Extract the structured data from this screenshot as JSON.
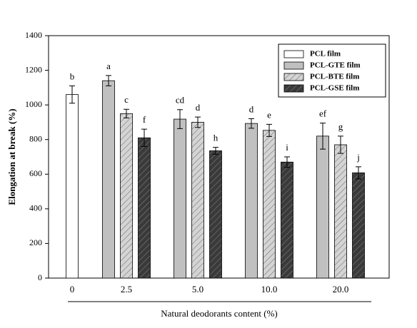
{
  "chart_data": {
    "type": "bar",
    "y_label": "Elongation at break (%)",
    "x_label": "Natural deodorants content (%)",
    "categories": [
      "0",
      "2.5",
      "5.0",
      "10.0",
      "20.0"
    ],
    "ylim": [
      0,
      1400
    ],
    "yticks": [
      0,
      200,
      400,
      600,
      800,
      1000,
      1200,
      1400
    ],
    "legend": "top-right",
    "series": [
      {
        "name": "PCL film",
        "color": "#ffffff",
        "hatch": false,
        "values": [
          1060,
          null,
          null,
          null,
          null
        ],
        "errors": [
          50,
          null,
          null,
          null,
          null
        ],
        "letters": [
          "b",
          null,
          null,
          null,
          null
        ]
      },
      {
        "name": "PCL-GTE film",
        "color": "#c0c0c0",
        "hatch": false,
        "values": [
          null,
          1140,
          918,
          893,
          820
        ],
        "errors": [
          null,
          30,
          55,
          28,
          75
        ],
        "letters": [
          null,
          "a",
          "cd",
          "d",
          "ef"
        ]
      },
      {
        "name": "PCL-BTE film",
        "color": "#d4d4d4",
        "hatch": true,
        "values": [
          null,
          950,
          900,
          853,
          770
        ],
        "errors": [
          null,
          25,
          30,
          35,
          50
        ],
        "letters": [
          null,
          "c",
          "d",
          "e",
          "g"
        ]
      },
      {
        "name": "PCL-GSE film",
        "color": "#3a3a3a",
        "hatch": true,
        "values": [
          null,
          810,
          735,
          670,
          608
        ],
        "errors": [
          null,
          50,
          20,
          30,
          35
        ],
        "letters": [
          null,
          "f",
          "h",
          "i",
          "j"
        ]
      }
    ]
  }
}
